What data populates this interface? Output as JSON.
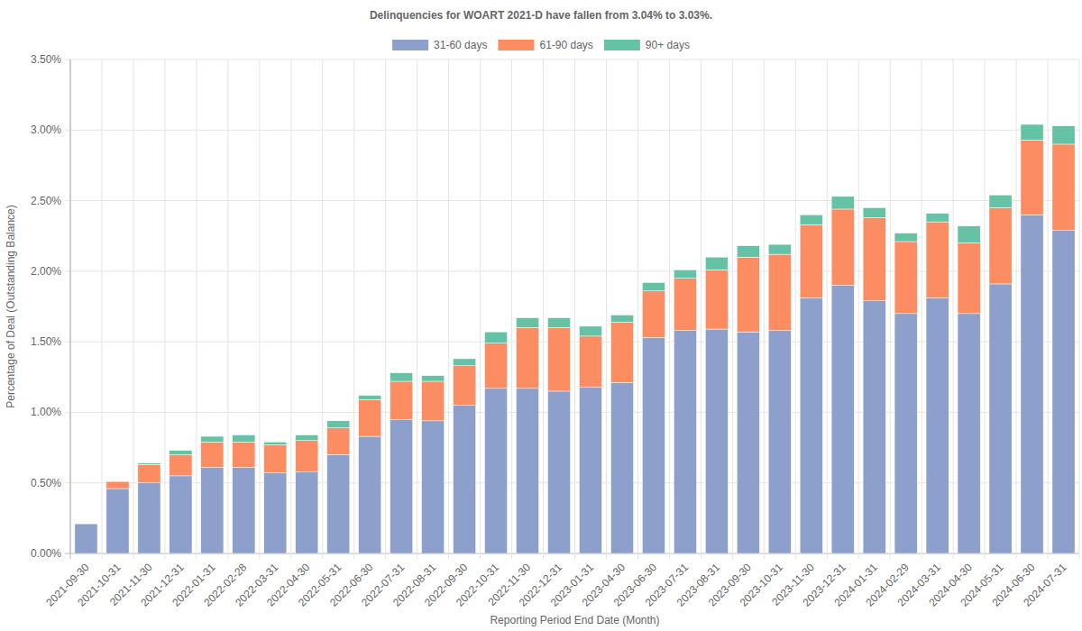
{
  "chart_data": {
    "type": "bar",
    "stacked": true,
    "grid": true,
    "legend": "top",
    "title": "Delinquencies for WOART 2021-D have fallen from 3.04% to 3.03%.",
    "x_label": "Reporting Period End Date (Month)",
    "y_label": "Percentage of Deal (Outstanding Balance)",
    "categories": [
      "2021-09-30",
      "2021-10-31",
      "2021-11-30",
      "2021-12-31",
      "2022-01-31",
      "2022-02-28",
      "2022-03-31",
      "2022-04-30",
      "2022-05-31",
      "2022-06-30",
      "2022-07-31",
      "2022-08-31",
      "2022-09-30",
      "2022-10-31",
      "2022-11-30",
      "2022-12-31",
      "2023-01-31",
      "2023-04-30",
      "2023-06-30",
      "2023-07-31",
      "2023-08-31",
      "2023-09-30",
      "2023-10-31",
      "2023-11-30",
      "2023-12-31",
      "2024-01-31",
      "2024-02-29",
      "2024-03-31",
      "2024-04-30",
      "2024-05-31",
      "2024-06-30",
      "2024-07-31"
    ],
    "series": [
      {
        "name": "31-60 days",
        "color": "#8da0cb",
        "values": [
          0.21,
          0.46,
          0.5,
          0.55,
          0.61,
          0.61,
          0.57,
          0.58,
          0.7,
          0.83,
          0.95,
          0.94,
          1.05,
          1.17,
          1.17,
          1.15,
          1.18,
          1.21,
          1.53,
          1.58,
          1.59,
          1.57,
          1.58,
          1.81,
          1.9,
          1.79,
          1.7,
          1.81,
          1.7,
          1.91,
          2.4,
          2.29
        ]
      },
      {
        "name": "61-90 days",
        "color": "#fc8d62",
        "values": [
          0,
          0.05,
          0.13,
          0.15,
          0.18,
          0.18,
          0.2,
          0.22,
          0.19,
          0.26,
          0.27,
          0.28,
          0.28,
          0.32,
          0.43,
          0.45,
          0.36,
          0.43,
          0.33,
          0.37,
          0.42,
          0.53,
          0.54,
          0.52,
          0.54,
          0.59,
          0.51,
          0.54,
          0.5,
          0.54,
          0.53,
          0.61
        ]
      },
      {
        "name": "90+ days",
        "color": "#66c2a5",
        "values": [
          0,
          0,
          0.01,
          0.03,
          0.04,
          0.05,
          0.02,
          0.04,
          0.05,
          0.03,
          0.06,
          0.04,
          0.05,
          0.08,
          0.07,
          0.07,
          0.07,
          0.05,
          0.06,
          0.06,
          0.09,
          0.08,
          0.07,
          0.07,
          0.09,
          0.07,
          0.06,
          0.06,
          0.12,
          0.09,
          0.11,
          0.13
        ]
      }
    ],
    "ylim": [
      0,
      3.5
    ],
    "yticks": [
      {
        "value": 0,
        "label": "0.00%"
      },
      {
        "value": 0.5,
        "label": "0.50%"
      },
      {
        "value": 1,
        "label": "1.00%"
      },
      {
        "value": 1.5,
        "label": "1.50%"
      },
      {
        "value": 2,
        "label": "2.00%"
      },
      {
        "value": 2.5,
        "label": "2.50%"
      },
      {
        "value": 3,
        "label": "3.00%"
      },
      {
        "value": 3.5,
        "label": "3.50%"
      }
    ]
  }
}
